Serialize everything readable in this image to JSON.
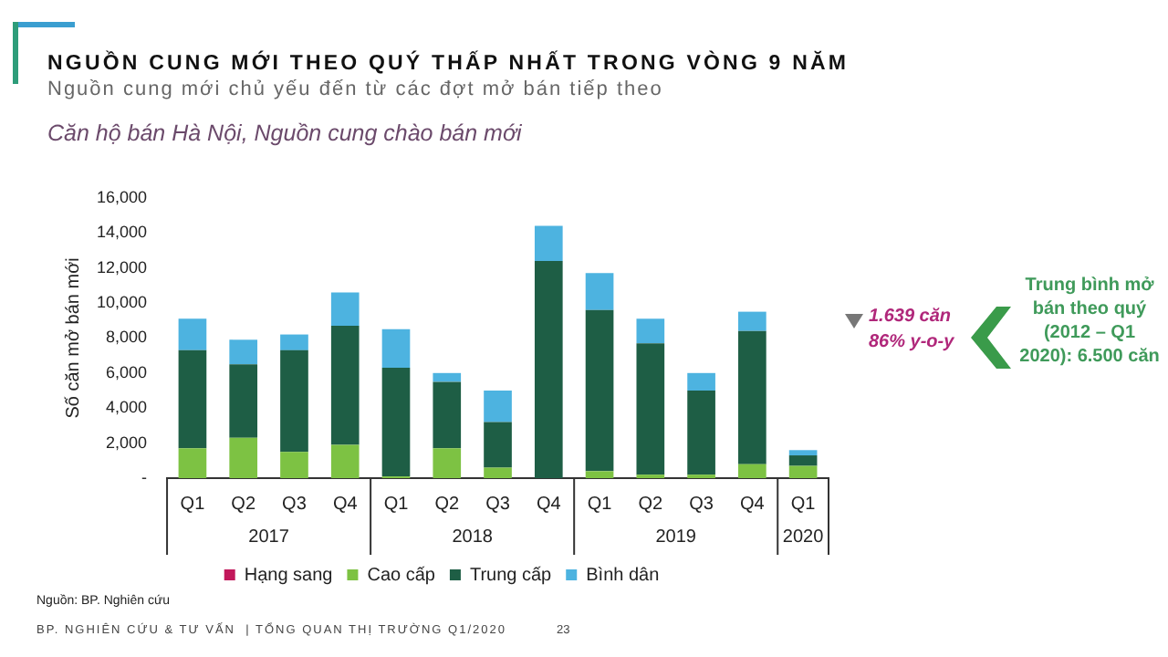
{
  "chart_data": {
    "type": "bar",
    "title": "NGUỒN CUNG MỚI THEO QUÝ THẤP NHẤT TRONG VÒNG 9 NĂM",
    "subtitle": "Nguồn cung mới chủ yếu đến từ các đợt mở bán tiếp theo",
    "xlabel": "Căn hộ bán Hà Nội, Nguồn cung chào bán mới",
    "ylabel": "Số căn mở bán mới",
    "categories": [
      "Q1",
      "Q2",
      "Q3",
      "Q4",
      "Q1",
      "Q2",
      "Q3",
      "Q4",
      "Q1",
      "Q2",
      "Q3",
      "Q4",
      "Q1"
    ],
    "stacked": true,
    "series": [
      {
        "name": "Hạng sang",
        "color": "#c2185b",
        "values": [
          0,
          0,
          0,
          0,
          0,
          0,
          0,
          0,
          0,
          0,
          0,
          0,
          0
        ]
      },
      {
        "name": "Cao cấp",
        "color": "#7dc243",
        "values": [
          1700,
          2300,
          1500,
          1900,
          100,
          1700,
          600,
          0,
          400,
          200,
          200,
          800,
          700
        ]
      },
      {
        "name": "Trung cấp",
        "color": "#1e5e45",
        "values": [
          5600,
          4200,
          5800,
          6800,
          6200,
          3800,
          2600,
          12400,
          9200,
          7500,
          4800,
          7600,
          600
        ]
      },
      {
        "name": "Bình dân",
        "color": "#4db3e0",
        "values": [
          1800,
          1400,
          900,
          1900,
          2200,
          500,
          1800,
          2000,
          2100,
          1400,
          1000,
          1100,
          300
        ]
      }
    ],
    "ylim": [
      0,
      16000
    ],
    "yticks": [
      {
        "value": 0,
        "label": "-"
      },
      {
        "value": 2000,
        "label": "2,000"
      },
      {
        "value": 4000,
        "label": "4,000"
      },
      {
        "value": 6000,
        "label": "6,000"
      },
      {
        "value": 8000,
        "label": "8,000"
      },
      {
        "value": 10000,
        "label": "10,000"
      },
      {
        "value": 12000,
        "label": "12,000"
      },
      {
        "value": 14000,
        "label": "14,000"
      },
      {
        "value": 16000,
        "label": "16,000"
      }
    ],
    "grid": false,
    "legend": "bottom",
    "annotations": [
      "1.639 căn",
      "86% y-o-y",
      "Trung bình mở bán theo quý (2012 – Q1 2020): 6.500 căn",
      "Nguồn: BP. Nghiên cứu",
      "BP. NGHIÊN CỨU & TƯ VẤN  | TỔNG QUAN THỊ TRƯỜNG Q1/2020",
      "23",
      "2017",
      "2018",
      "2019",
      "2020"
    ]
  }
}
